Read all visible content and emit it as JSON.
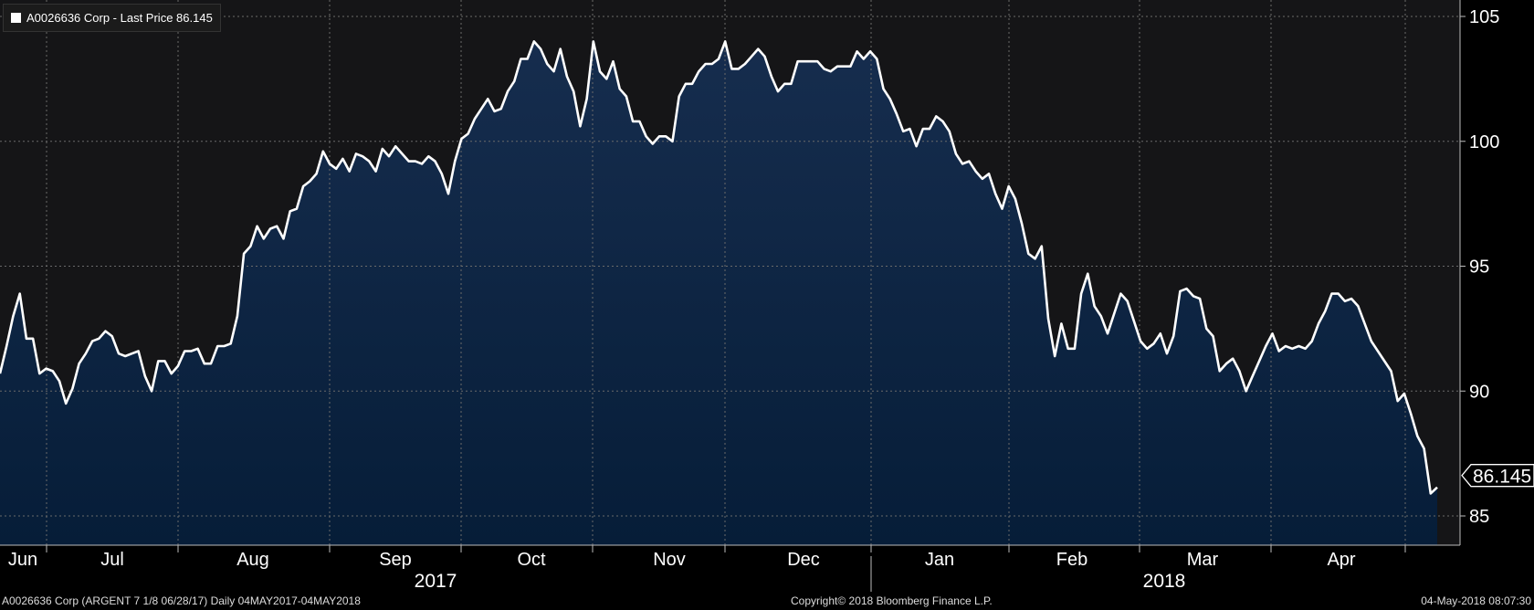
{
  "legend": {
    "series_label": "A0026636 Corp - Last Price 86.145"
  },
  "footer": {
    "left": "A0026636 Corp (ARGENT 7 1/8 06/28/17)  Daily 04MAY2017-04MAY2018",
    "center": "Copyright© 2018 Bloomberg Finance L.P.",
    "right": "04-May-2018 08:07:30"
  },
  "colors": {
    "background_top": "#151517",
    "fill_top": "#162d4e",
    "fill_bottom": "#061d38",
    "line": "#ffffff",
    "grid": "#6a6a6a"
  },
  "chart_data": {
    "type": "area",
    "title": "",
    "xlabel": "",
    "ylabel": "",
    "ylim": [
      84,
      106
    ],
    "y_ticks": [
      "105",
      "100",
      "95",
      "90",
      "85"
    ],
    "last_value_label": "86.145",
    "x_month_labels": [
      "Jun",
      "Jul",
      "Aug",
      "Sep",
      "Oct",
      "Nov",
      "Dec",
      "Jan",
      "Feb",
      "Mar",
      "Apr"
    ],
    "x_year_labels": [
      "2017",
      "2018"
    ],
    "grid": true,
    "series": [
      {
        "values": [
          90.7,
          91.8,
          93.0,
          93.9,
          92.1,
          92.1,
          90.7,
          90.9,
          90.8,
          90.4,
          89.5,
          90.1,
          91.1,
          91.5,
          92.0,
          92.1,
          92.4,
          92.2,
          91.5,
          91.4,
          91.5,
          91.6,
          90.6,
          90.0,
          91.2,
          91.2,
          90.7,
          91.0,
          91.6,
          91.6,
          91.7,
          91.1,
          91.1,
          91.8,
          91.8,
          91.9,
          93.0,
          95.5,
          95.8,
          96.6,
          96.1,
          96.5,
          96.6,
          96.1,
          97.2,
          97.3,
          98.2,
          98.4,
          98.7,
          99.6,
          99.1,
          98.9,
          99.3,
          98.8,
          99.5,
          99.4,
          99.2,
          98.8,
          99.7,
          99.4,
          99.8,
          99.5,
          99.2,
          99.2,
          99.1,
          99.4,
          99.2,
          98.7,
          97.9,
          99.2,
          100.1,
          100.3,
          100.9,
          101.3,
          101.7,
          101.2,
          101.3,
          102.0,
          102.4,
          103.3,
          103.3,
          104.0,
          103.7,
          103.1,
          102.8,
          103.7,
          102.6,
          102.0,
          100.6,
          101.7,
          104.0,
          102.8,
          102.5,
          103.2,
          102.1,
          101.8,
          100.8,
          100.8,
          100.2,
          99.9,
          100.2,
          100.2,
          100.0,
          101.8,
          102.3,
          102.3,
          102.8,
          103.1,
          103.1,
          103.3,
          104.0,
          102.9,
          102.9,
          103.1,
          103.4,
          103.7,
          103.4,
          102.6,
          102.0,
          102.3,
          102.3,
          103.2,
          103.2,
          103.2,
          103.2,
          102.9,
          102.8,
          103.0,
          103.0,
          103.0,
          103.6,
          103.3,
          103.6,
          103.3,
          102.1,
          101.7,
          101.1,
          100.4,
          100.5,
          99.8,
          100.5,
          100.5,
          101.0,
          100.8,
          100.4,
          99.5,
          99.1,
          99.2,
          98.8,
          98.5,
          98.7,
          97.9,
          97.3,
          98.2,
          97.7,
          96.7,
          95.5,
          95.3,
          95.8,
          92.9,
          91.4,
          92.7,
          91.7,
          91.7,
          93.9,
          94.7,
          93.4,
          93.0,
          92.3,
          93.1,
          93.9,
          93.6,
          92.8,
          92.0,
          91.7,
          91.9,
          92.3,
          91.5,
          92.2,
          94.0,
          94.1,
          93.8,
          93.7,
          92.5,
          92.2,
          90.8,
          91.1,
          91.3,
          90.8,
          90.0,
          90.6,
          91.2,
          91.8,
          92.3,
          91.6,
          91.8,
          91.7,
          91.8,
          91.7,
          92.0,
          92.7,
          93.2,
          93.9,
          93.9,
          93.6,
          93.7,
          93.4,
          92.7,
          92.0,
          91.6,
          91.2,
          90.8,
          89.6,
          89.9,
          89.1,
          88.2,
          87.7,
          85.9,
          86.145
        ]
      }
    ]
  }
}
